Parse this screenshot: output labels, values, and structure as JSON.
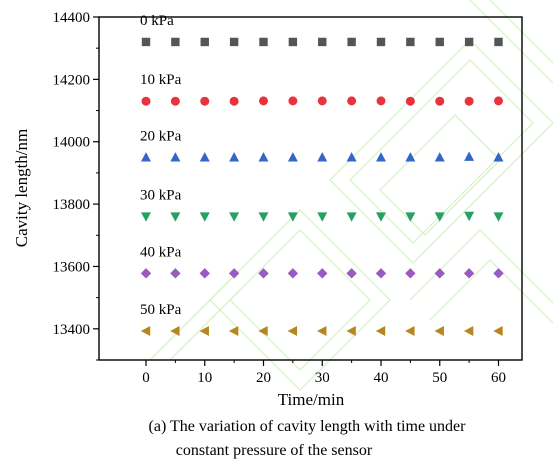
{
  "chart_data": {
    "type": "scatter",
    "xlabel": "Time/min",
    "ylabel": "Cavity length/nm",
    "xlim": [
      -8,
      64
    ],
    "ylim": [
      13300,
      14400
    ],
    "x_ticks": [
      0,
      10,
      20,
      30,
      40,
      50,
      60
    ],
    "y_ticks": [
      13400,
      13600,
      13800,
      14000,
      14200,
      14400
    ],
    "grid": false,
    "legend": "none",
    "x": [
      0,
      5,
      10,
      15,
      20,
      25,
      30,
      35,
      40,
      45,
      50,
      55,
      60
    ],
    "series": [
      {
        "name": "0 kPa",
        "marker": "square",
        "color": "#555555",
        "values": [
          14320,
          14320,
          14320,
          14320,
          14320,
          14320,
          14320,
          14320,
          14320,
          14320,
          14320,
          14320,
          14320
        ]
      },
      {
        "name": "10 kPa",
        "marker": "circle",
        "color": "#e8323c",
        "values": [
          14130,
          14130,
          14130,
          14130,
          14131,
          14131,
          14131,
          14131,
          14131,
          14130,
          14130,
          14130,
          14131
        ]
      },
      {
        "name": "20 kPa",
        "marker": "triangle-up",
        "color": "#3366c9",
        "values": [
          13950,
          13950,
          13950,
          13950,
          13950,
          13950,
          13950,
          13950,
          13950,
          13950,
          13950,
          13952,
          13950
        ]
      },
      {
        "name": "30 kPa",
        "marker": "triangle-down",
        "color": "#27a065",
        "values": [
          13760,
          13760,
          13760,
          13760,
          13760,
          13760,
          13760,
          13760,
          13760,
          13760,
          13760,
          13762,
          13760
        ]
      },
      {
        "name": "40 kPa",
        "marker": "diamond",
        "color": "#9b59c2",
        "values": [
          13578,
          13578,
          13578,
          13578,
          13578,
          13578,
          13578,
          13578,
          13578,
          13578,
          13578,
          13578,
          13578
        ]
      },
      {
        "name": "50 kPa",
        "marker": "triangle-left",
        "color": "#b8861e",
        "values": [
          13393,
          13393,
          13393,
          13393,
          13393,
          13393,
          13393,
          13393,
          13393,
          13393,
          13393,
          13393,
          13393
        ]
      }
    ]
  },
  "caption": {
    "line1": "(a) The variation of cavity length with time under",
    "line2": "constant pressure of the sensor"
  }
}
